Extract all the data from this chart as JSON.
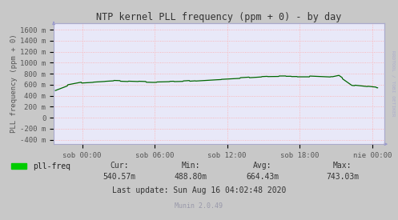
{
  "title": "NTP kernel PLL frequency (ppm + 0) - by day",
  "ylabel": "PLL frequency (ppm + 0)",
  "bg_color": "#c8c8c8",
  "plot_bg_color": "#e8e8f8",
  "grid_color_major": "#ffaaaa",
  "grid_color_minor": "#ffcccc",
  "line_color": "#006600",
  "line_fill": "#00aa00",
  "yticks": [
    -400,
    -200,
    0,
    200,
    400,
    600,
    800,
    1000,
    1200,
    1400,
    1600
  ],
  "ytick_labels": [
    "-400 m",
    "-200 m",
    "0",
    "200 m",
    "400 m",
    "600 m",
    "800 m",
    "1000 m",
    "1200 m",
    "1400 m",
    "1600 m"
  ],
  "ylim": [
    -480,
    1720
  ],
  "xtick_labels": [
    "sob 00:00",
    "sob 06:00",
    "sob 12:00",
    "sob 18:00",
    "nie 00:00"
  ],
  "cur": "540.57m",
  "min": "488.80m",
  "avg": "664.43m",
  "max": "743.03m",
  "last_update": "Last update: Sun Aug 16 04:02:48 2020",
  "munin_version": "Munin 2.0.49",
  "watermark": "RRDTOOL / TOBI OETIKER",
  "legend_label": "pll-freq",
  "legend_color": "#00cc00",
  "spine_color": "#aaaacc",
  "text_color": "#555555",
  "watermark_color": "#aaaacc"
}
